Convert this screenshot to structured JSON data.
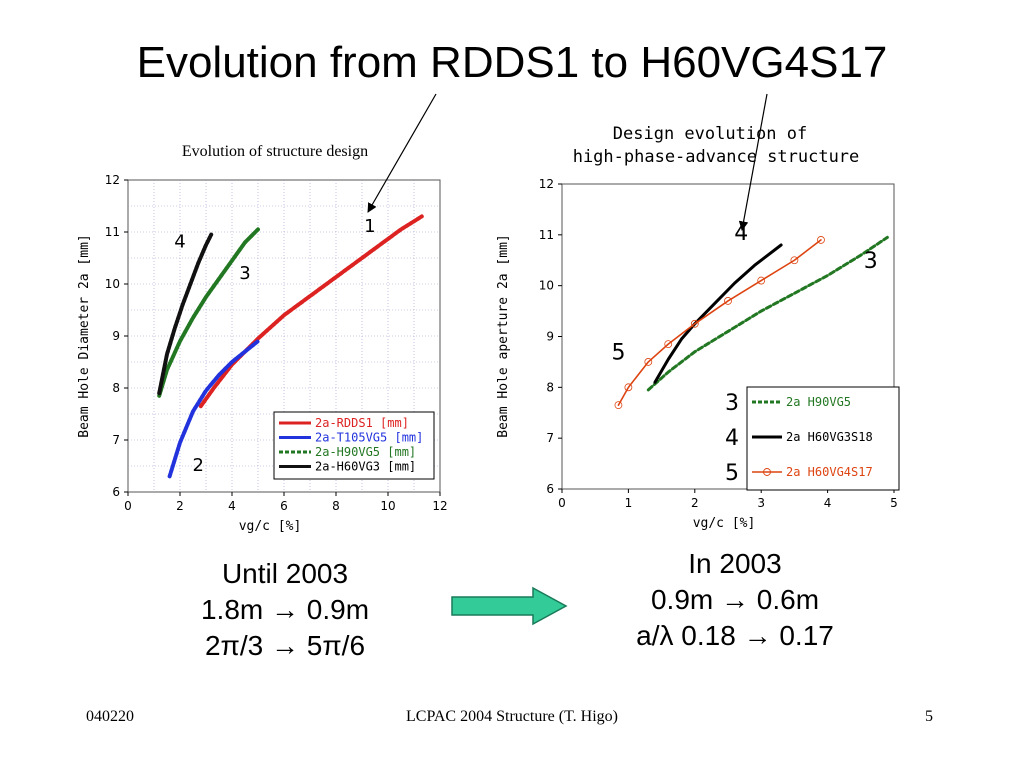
{
  "slide": {
    "title": "Evolution from RDDS1 to H60VG4S17",
    "left_summary": [
      "Until 2003",
      "1.8m → 0.9m",
      "2π/3 → 5π/6"
    ],
    "right_summary": [
      "In 2003",
      "0.9m → 0.6m",
      "a/λ  0.18 → 0.17"
    ],
    "footer_date": "040220",
    "footer_center": "LCPAC 2004  Structure (T. Higo)",
    "footer_page": "5",
    "arrow_color": "#33cc99"
  },
  "chart_data": [
    {
      "type": "line",
      "title": "Evolution of structure design",
      "xlabel": "vg/c  [%]",
      "ylabel": "Beam Hole Diameter  2a [mm]",
      "xlim": [
        0,
        12
      ],
      "ylim": [
        6,
        12
      ],
      "xticks": [
        "0",
        "2",
        "4",
        "6",
        "8",
        "10",
        "12"
      ],
      "yticks": [
        "6",
        "7",
        "8",
        "9",
        "10",
        "11",
        "12"
      ],
      "grid": true,
      "legend": "bottom-right",
      "series": [
        {
          "name": "2a-RDDS1 [mm]",
          "color": "#dd2222",
          "style": "solid",
          "x": [
            2.8,
            3.3,
            4.0,
            5.0,
            6.0,
            7.5,
            9.0,
            10.5,
            11.3
          ],
          "y": [
            7.65,
            8.0,
            8.45,
            8.95,
            9.4,
            9.95,
            10.5,
            11.05,
            11.3
          ]
        },
        {
          "name": "2a-T105VG5 [mm]",
          "color": "#2233dd",
          "style": "solid",
          "x": [
            1.6,
            2.0,
            2.5,
            3.0,
            3.5,
            4.0,
            4.5,
            5.0
          ],
          "y": [
            6.3,
            6.95,
            7.55,
            7.95,
            8.25,
            8.5,
            8.7,
            8.9
          ]
        },
        {
          "name": "2a-H90VG5 [mm]",
          "color": "#227722",
          "style": "dashed",
          "x": [
            1.2,
            1.5,
            2.0,
            2.5,
            3.0,
            3.5,
            4.0,
            4.5,
            5.0
          ],
          "y": [
            7.85,
            8.35,
            8.9,
            9.35,
            9.75,
            10.1,
            10.45,
            10.8,
            11.05
          ]
        },
        {
          "name": "2a-H60VG3 [mm]",
          "color": "#111111",
          "style": "solid",
          "x": [
            1.2,
            1.5,
            1.8,
            2.1,
            2.4,
            2.7,
            3.0,
            3.2
          ],
          "y": [
            7.9,
            8.65,
            9.15,
            9.6,
            10.0,
            10.4,
            10.75,
            10.95
          ]
        }
      ],
      "annotations": [
        {
          "text": "1",
          "x": 9.3,
          "y": 11.0
        },
        {
          "text": "2",
          "x": 2.7,
          "y": 6.4
        },
        {
          "text": "3",
          "x": 4.5,
          "y": 10.1
        },
        {
          "text": "4",
          "x": 2.0,
          "y": 10.7
        }
      ]
    },
    {
      "type": "line",
      "title": [
        "Design evolution of",
        "high-phase-advance structure"
      ],
      "xlabel": "vg/c [%]",
      "ylabel": "Beam Hole aperture 2a [mm]",
      "xlim": [
        0,
        5
      ],
      "ylim": [
        6,
        12
      ],
      "xticks": [
        "0",
        "1",
        "2",
        "3",
        "4",
        "5"
      ],
      "yticks": [
        "6",
        "7",
        "8",
        "9",
        "10",
        "11",
        "12"
      ],
      "grid": false,
      "legend": "bottom-right",
      "series": [
        {
          "name": "2a H90VG5",
          "color": "#227722",
          "style": "dashed",
          "x": [
            1.3,
            1.6,
            2.0,
            2.5,
            3.0,
            3.5,
            4.0,
            4.5,
            4.9
          ],
          "y": [
            7.95,
            8.3,
            8.7,
            9.1,
            9.5,
            9.85,
            10.2,
            10.6,
            10.95
          ]
        },
        {
          "name": "2a H60VG3S18",
          "color": "#000000",
          "style": "solid",
          "x": [
            1.4,
            1.6,
            1.8,
            2.0,
            2.3,
            2.6,
            2.9,
            3.3
          ],
          "y": [
            8.1,
            8.55,
            8.95,
            9.25,
            9.65,
            10.05,
            10.4,
            10.8
          ]
        },
        {
          "name": "2a H60VG4S17",
          "color": "#dd4411",
          "style": "markers",
          "x": [
            0.85,
            1.0,
            1.3,
            1.6,
            2.0,
            2.5,
            3.0,
            3.5,
            3.9
          ],
          "y": [
            7.65,
            8.0,
            8.5,
            8.85,
            9.25,
            9.7,
            10.1,
            10.5,
            10.9
          ]
        }
      ],
      "annotations": [
        {
          "text": "3",
          "x": 4.65,
          "y": 10.35
        },
        {
          "text": "4",
          "x": 2.7,
          "y": 10.9
        },
        {
          "text": "5",
          "x": 0.85,
          "y": 8.55
        }
      ],
      "legend_numbers": [
        "3",
        "4",
        "5"
      ]
    }
  ]
}
